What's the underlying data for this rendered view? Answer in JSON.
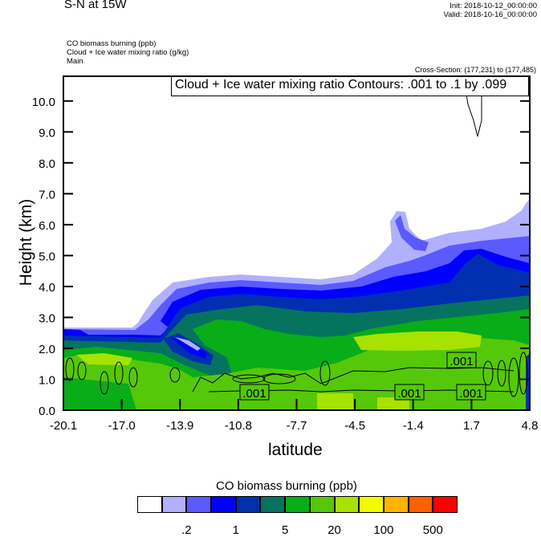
{
  "header": {
    "title": "S-N at 15W",
    "init": "Init: 2018-10-12_00:00:00",
    "valid": "Valid: 2018-10-16_00:00:00",
    "desc": [
      "CO biomass burning   (ppb)",
      "Cloud + Ice water mixing ratio   (g/kg)",
      "Main"
    ],
    "cross_section": "Cross-Section: (177,231) to (177,485)"
  },
  "chart_data": {
    "type": "heatmap",
    "title": "S-N at 15W",
    "xlabel": "latitude",
    "ylabel": "Height (km)",
    "xlim": [
      -20.1,
      4.8
    ],
    "ylim": [
      0,
      10.8
    ],
    "x_ticks": [
      "-20.1",
      "-17.0",
      "-13.9",
      "-10.8",
      "-7.7",
      "-4.5",
      "-1.4",
      "1.7",
      "4.8"
    ],
    "y_ticks": [
      "0.0",
      "1.0",
      "2.0",
      "3.0",
      "4.0",
      "5.0",
      "6.0",
      "7.0",
      "8.0",
      "9.0",
      "10.0"
    ],
    "contour_legend": "Cloud + Ice water mixing ratio Contours: .001 to .1 by .099",
    "contour_labels": [
      ".001",
      ".001",
      ".001",
      ".001"
    ],
    "filled_field": "CO biomass burning (ppb)",
    "colorbar": {
      "title": "CO biomass burning  (ppb)",
      "colors": [
        "#ffffff",
        "#b0b0ff",
        "#5a5aff",
        "#0000ff",
        "#0030b0",
        "#06735f",
        "#08ad18",
        "#55c80a",
        "#a8e200",
        "#f4fa00",
        "#ffb400",
        "#ff6000",
        "#ff0000"
      ],
      "labels": [
        ".2",
        "1",
        "5",
        "20",
        "100",
        "500"
      ]
    }
  }
}
